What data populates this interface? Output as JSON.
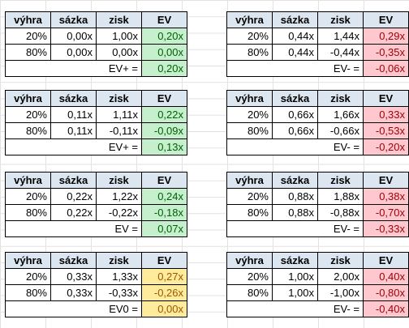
{
  "headers": {
    "win": "výhra",
    "bet": "sázka",
    "profit": "zisk",
    "ev": "EV"
  },
  "blocks_left": [
    {
      "rows": [
        {
          "win": "20%",
          "bet": "0,00x",
          "profit": "1,00x",
          "ev": "0,20x"
        },
        {
          "win": "80%",
          "bet": "0,00x",
          "profit": "0,00x",
          "ev": "0,00x"
        }
      ],
      "sum_label": "EV+ =",
      "sum_value": "0,20x",
      "tone": "green"
    },
    {
      "rows": [
        {
          "win": "20%",
          "bet": "0,11x",
          "profit": "1,11x",
          "ev": "0,22x"
        },
        {
          "win": "80%",
          "bet": "0,11x",
          "profit": "-0,11x",
          "ev": "-0,09x"
        }
      ],
      "sum_label": "EV+ =",
      "sum_value": "0,13x",
      "tone": "green"
    },
    {
      "rows": [
        {
          "win": "20%",
          "bet": "0,22x",
          "profit": "1,22x",
          "ev": "0,24x"
        },
        {
          "win": "80%",
          "bet": "0,22x",
          "profit": "-0,22x",
          "ev": "-0,18x"
        }
      ],
      "sum_label": "EV =",
      "sum_value": "0,07x",
      "tone": "green"
    },
    {
      "rows": [
        {
          "win": "20%",
          "bet": "0,33x",
          "profit": "1,33x",
          "ev": "0,27x"
        },
        {
          "win": "80%",
          "bet": "0,33x",
          "profit": "-0,33x",
          "ev": "-0,26x"
        }
      ],
      "sum_label": "EV0 =",
      "sum_value": "0,00x",
      "tone": "orange"
    }
  ],
  "blocks_right": [
    {
      "rows": [
        {
          "win": "20%",
          "bet": "0,44x",
          "profit": "1,44x",
          "ev": "0,29x"
        },
        {
          "win": "80%",
          "bet": "0,44x",
          "profit": "-0,44x",
          "ev": "-0,35x"
        }
      ],
      "sum_label": "EV- =",
      "sum_value": "-0,06x",
      "tone": "red"
    },
    {
      "rows": [
        {
          "win": "20%",
          "bet": "0,66x",
          "profit": "1,66x",
          "ev": "0,33x"
        },
        {
          "win": "80%",
          "bet": "0,66x",
          "profit": "-0,66x",
          "ev": "-0,53x"
        }
      ],
      "sum_label": "EV- =",
      "sum_value": "-0,20x",
      "tone": "red"
    },
    {
      "rows": [
        {
          "win": "20%",
          "bet": "0,88x",
          "profit": "1,88x",
          "ev": "0,38x"
        },
        {
          "win": "80%",
          "bet": "0,88x",
          "profit": "-0,88x",
          "ev": "-0,70x"
        }
      ],
      "sum_label": "EV- =",
      "sum_value": "-0,33x",
      "tone": "red"
    },
    {
      "rows": [
        {
          "win": "20%",
          "bet": "1,00x",
          "profit": "2,00x",
          "ev": "0,40x"
        },
        {
          "win": "80%",
          "bet": "1,00x",
          "profit": "-1,00x",
          "ev": "-0,80x"
        }
      ],
      "sum_label": "EV- =",
      "sum_value": "-0,40x",
      "tone": "red"
    }
  ],
  "colors": {
    "header_fill": "#dce6f1",
    "green_fill": "#c6efce",
    "green_text": "#006100",
    "red_fill": "#ffc7ce",
    "red_text": "#9c0006",
    "orange_fill": "#ffeb9c",
    "orange_text": "#9c5700"
  }
}
